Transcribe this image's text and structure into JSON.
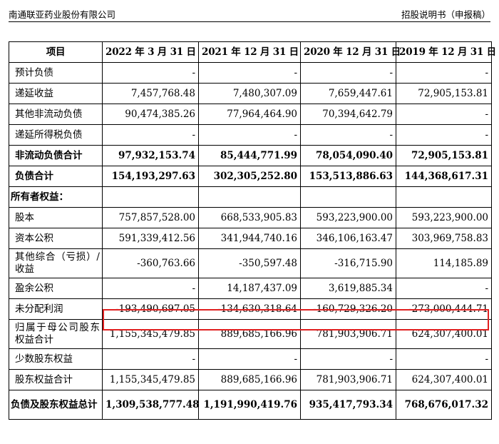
{
  "header": {
    "company": "南通联亚药业股份有限公司",
    "doc_title": "招股说明书（申报稿）"
  },
  "table": {
    "columns": [
      "项目",
      "2022 年 3 月 31 日",
      "2021 年 12 月 31 日",
      "2020 年 12 月 31 日",
      "2019 年 12 月 31 日"
    ],
    "rows": [
      {
        "label": "预计负债",
        "values": [
          "-",
          "-",
          "-",
          "-"
        ]
      },
      {
        "label": "递延收益",
        "values": [
          "7,457,768.48",
          "7,480,307.09",
          "7,659,447.61",
          "72,905,153.81"
        ]
      },
      {
        "label": "其他非流动负债",
        "values": [
          "90,474,385.26",
          "77,964,464.90",
          "70,394,642.79",
          "-"
        ]
      },
      {
        "label": "递延所得税负债",
        "values": [
          "-",
          "-",
          "-",
          "-"
        ]
      },
      {
        "label": "非流动负债合计",
        "values": [
          "97,932,153.74",
          "85,444,771.99",
          "78,054,090.40",
          "72,905,153.81"
        ]
      },
      {
        "label": "负债合计",
        "values": [
          "154,193,297.63",
          "302,305,252.80",
          "153,513,886.63",
          "144,368,617.31"
        ]
      },
      {
        "label": "所有者权益：",
        "values": [
          "",
          "",
          "",
          ""
        ]
      },
      {
        "label": "股本",
        "values": [
          "757,857,528.00",
          "668,533,905.83",
          "593,223,900.00",
          "593,223,900.00"
        ]
      },
      {
        "label": "资本公积",
        "values": [
          "591,339,412.56",
          "341,944,740.16",
          "346,106,163.47",
          "303,969,758.83"
        ]
      },
      {
        "label": "其他综合（亏损）/收益",
        "values": [
          "-360,763.66",
          "-350,597.48",
          "-316,715.90",
          "114,185.89"
        ]
      },
      {
        "label": "盈余公积",
        "values": [
          "-",
          "14,187,437.09",
          "3,619,885.34",
          "-"
        ]
      },
      {
        "label": "未分配利润",
        "values": [
          "-193,490,697.05",
          "-134,630,318.64",
          "-160,729,326.20",
          "-273,000,444.71"
        ]
      },
      {
        "label": "归属于母公司股东权益合计",
        "values": [
          "1,155,345,479.85",
          "889,685,166.96",
          "781,903,906.71",
          "624,307,400.01"
        ]
      },
      {
        "label": "少数股东权益",
        "values": [
          "-",
          "-",
          "-",
          "-"
        ]
      },
      {
        "label": "股东权益合计",
        "values": [
          "1,155,345,479.85",
          "889,685,166.96",
          "781,903,906.71",
          "624,307,400.01"
        ]
      },
      {
        "label": "负债及股东权益总计",
        "values": [
          "1,309,538,777.48",
          "1,191,990,419.76",
          "935,417,793.34",
          "768,676,017.32"
        ]
      }
    ]
  }
}
